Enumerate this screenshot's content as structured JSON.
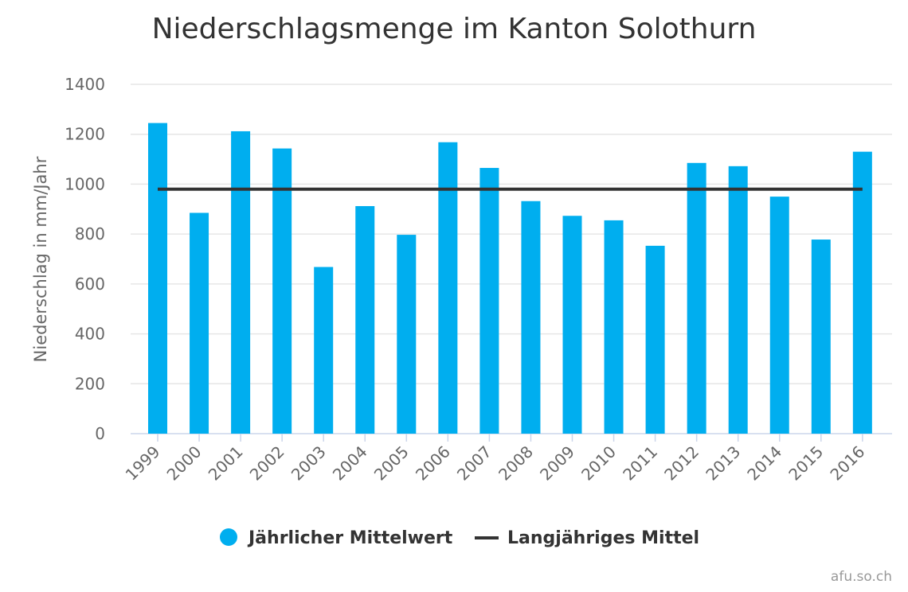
{
  "chart_data": {
    "type": "bar",
    "title": "Niederschlagsmenge im Kanton Solothurn",
    "xlabel": "",
    "ylabel": "Niederschlag in mm/Jahr",
    "categories": [
      "1999",
      "2000",
      "2001",
      "2002",
      "2003",
      "2004",
      "2005",
      "2006",
      "2007",
      "2008",
      "2009",
      "2010",
      "2011",
      "2012",
      "2013",
      "2014",
      "2015",
      "2016"
    ],
    "series": [
      {
        "name": "Jährlicher Mittelwert",
        "type": "bar",
        "color": "#00AEEF",
        "values": [
          1245,
          885,
          1212,
          1143,
          668,
          912,
          797,
          1168,
          1065,
          932,
          873,
          855,
          753,
          1085,
          1072,
          950,
          778,
          1130
        ]
      },
      {
        "name": "Langjähriges Mittel",
        "type": "line",
        "color": "#333333",
        "values": [
          980,
          980,
          980,
          980,
          980,
          980,
          980,
          980,
          980,
          980,
          980,
          980,
          980,
          980,
          980,
          980,
          980,
          980
        ]
      }
    ],
    "ylim": [
      0,
      1400
    ],
    "yticks": [
      "0",
      "200",
      "400",
      "600",
      "800",
      "1000",
      "1200",
      "1400"
    ],
    "grid": true,
    "legend": "bottom-center",
    "credit": "afu.so.ch"
  }
}
